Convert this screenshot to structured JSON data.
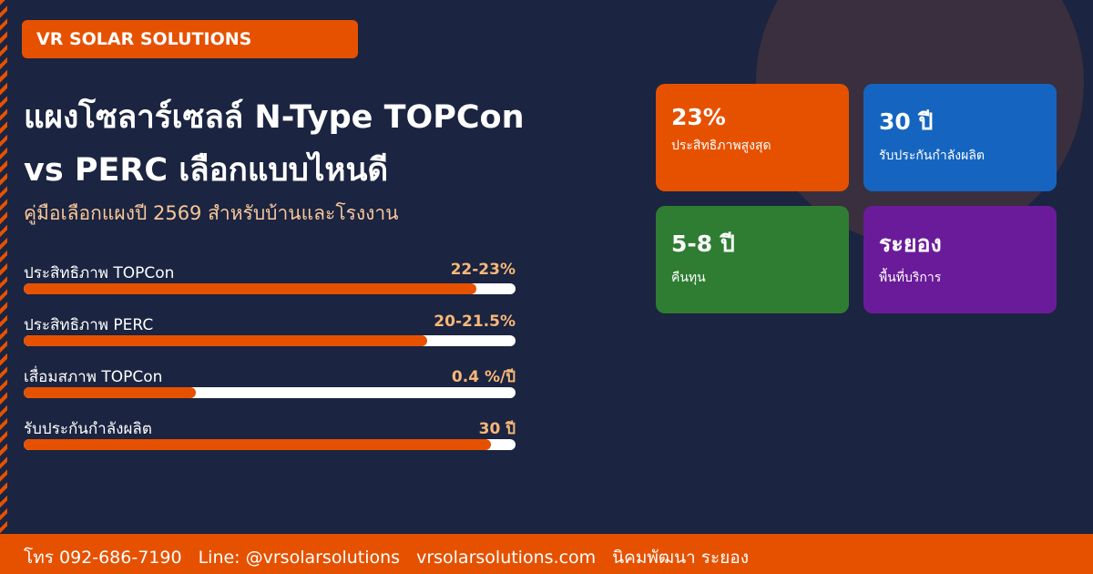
{
  "brand": "VR SOLAR SOLUTIONS",
  "title_lines": [
    "แผงโซลาร์เซลล์ N-Type TOPCon",
    "vs PERC เลือกแบบไหนดี"
  ],
  "subtitle": "คู่มือเลือกแผงปี 2569 สำหรับบ้านและโรงงาน",
  "bars": [
    {
      "label": "ประสิทธิภาพ TOPCon",
      "value": "22-23%",
      "bar_percent": 92
    },
    {
      "label": "ประสิทธิภาพ PERC",
      "value": "20-21.5%",
      "bar_percent": 82
    },
    {
      "label": "เสื่อมสภาพ TOPCon",
      "value": "0.4 %/ปี",
      "bar_percent": 35
    },
    {
      "label": "รับประกันกำลังผลิต",
      "value": "30 ปี",
      "bar_percent": 95
    }
  ],
  "cards": [
    {
      "value": "23%",
      "label": "ประสิทธิภาพสูงสุด",
      "color": "#e65100"
    },
    {
      "value": "30 ปี",
      "label": "รับประกันกำลังผลิต",
      "color": "#1565c0"
    },
    {
      "value": "5-8 ปี",
      "label": "คืนทุน",
      "color": "#2e7d32"
    },
    {
      "value": "ระยอง",
      "label": "พื้นที่บริการ",
      "color": "#6a1b9a"
    }
  ],
  "footer": [
    "โทร 092-686-7190",
    "Line: @vrsolarsolutions",
    "vrsolarsolutions.com",
    "นิคมพัฒนา ระยอง"
  ]
}
